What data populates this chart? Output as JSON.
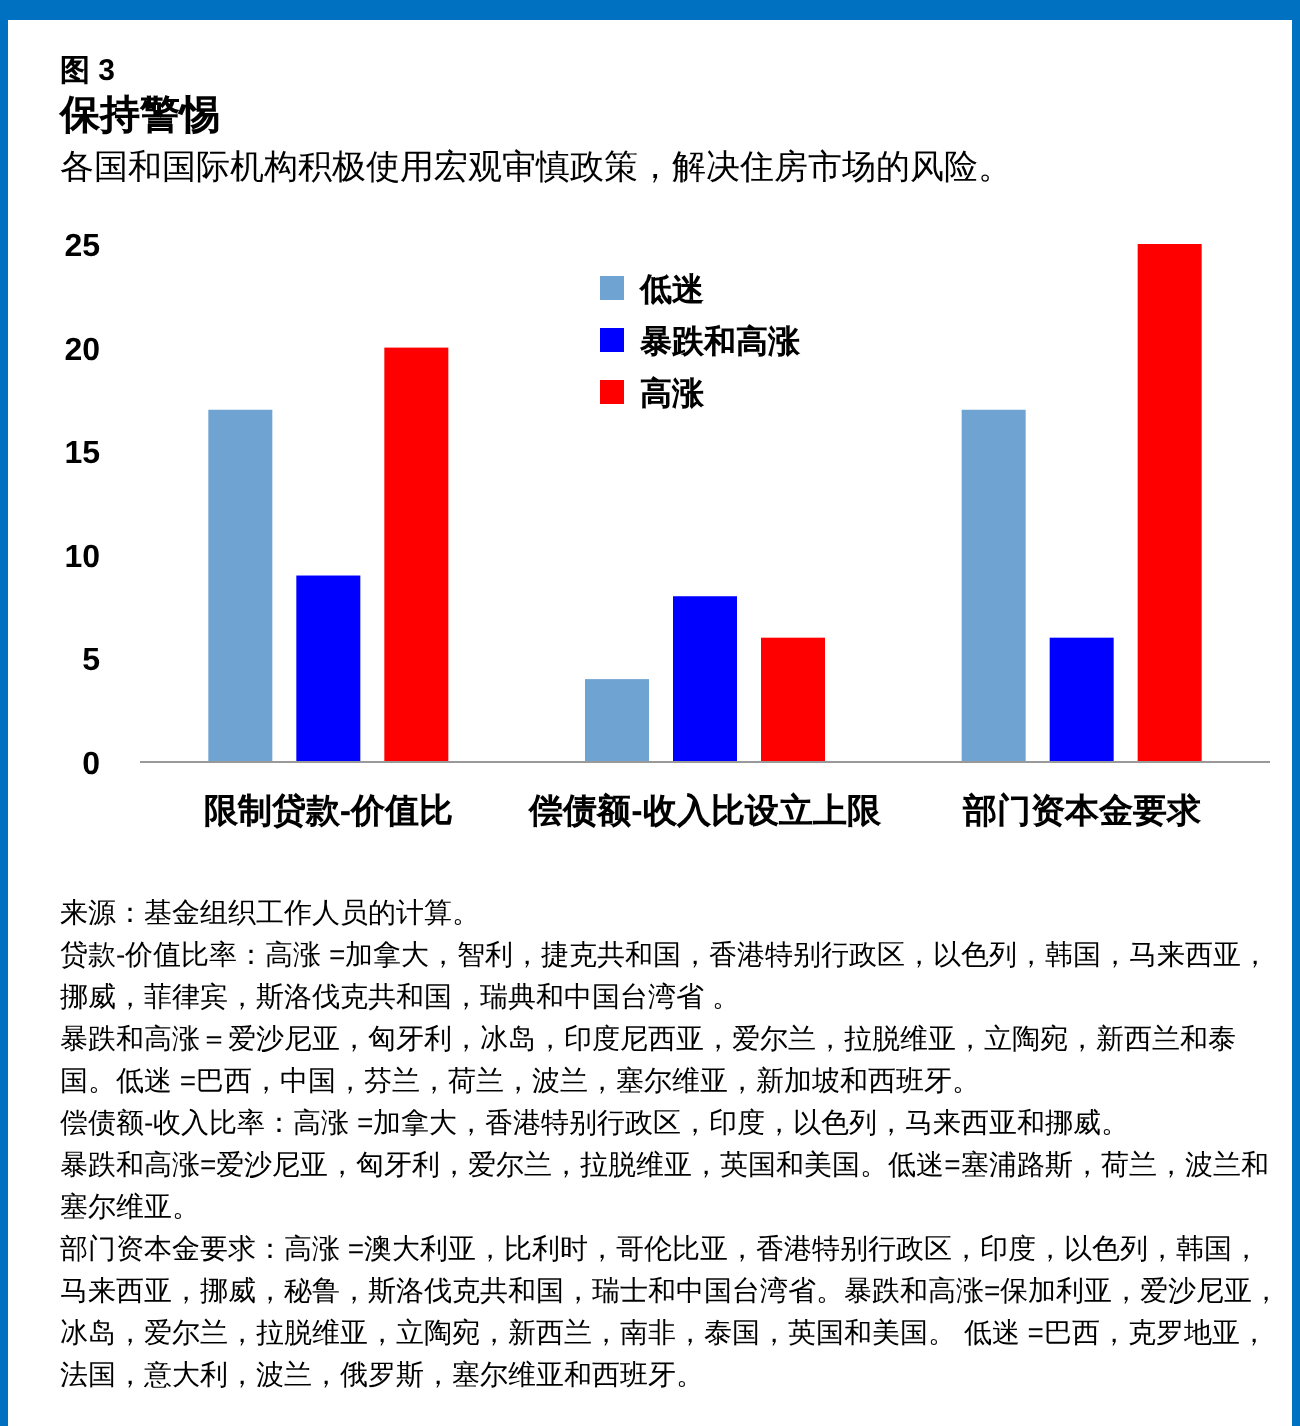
{
  "chart_data": {
    "type": "bar",
    "title": "保持警惕",
    "subtitle": "各国和国际机构积极使用宏观审慎政策，解决住房市场的风险。",
    "categories": [
      "限制贷款-价值比",
      "偿债额-收入比设立上限",
      "部门资本金要求"
    ],
    "series": [
      {
        "name": "低迷",
        "color": "#6fa3d2",
        "values": [
          17,
          4,
          17
        ]
      },
      {
        "name": "暴跌和高涨",
        "color": "#0000ff",
        "values": [
          9,
          8,
          6
        ]
      },
      {
        "name": "高涨",
        "color": "#ff0000",
        "values": [
          20,
          6,
          25
        ]
      }
    ],
    "ylim": [
      0,
      25
    ],
    "yticks": [
      0,
      5,
      10,
      15,
      20,
      25
    ],
    "grid": false,
    "legend": "top",
    "annotations": [
      "图 3",
      "来源：基金组织工作人员的计算。",
      "贷款-价值比率：高涨 =加拿大，智利，捷克共和国，香港特别行政区，以色列，韩国，马来西亚，挪威，菲律宾，斯洛伐克共和国，瑞典和中国台湾省 。",
      "暴跌和高涨＝爱沙尼亚，匈牙利，冰岛，印度尼西亚，爱尔兰，拉脱维亚，立陶宛，新西兰和泰国。低迷 =巴西，中国，芬兰，荷兰，波兰，塞尔维亚，新加坡和西班牙。",
      "偿债额-收入比率：高涨 =加拿大，香港特别行政区，印度，以色列，马来西亚和挪威。",
      "暴跌和高涨=爱沙尼亚，匈牙利，爱尔兰，拉脱维亚，英国和美国。低迷=塞浦路斯，荷兰，波兰和塞尔维亚。",
      "部门资本金要求：高涨 =澳大利亚，比利时，哥伦比亚，香港特别行政区，印度，以色列，韩国，马来西亚，挪威，秘鲁，斯洛伐克共和国，瑞士和中国台湾省。暴跌和高涨=保加利亚，爱沙尼亚，冰岛，爱尔兰，拉脱维亚，立陶宛，新西兰，南非，泰国，英国和美国。 低迷 =巴西，克罗地亚，法国，意大利，波兰，俄罗斯，塞尔维亚和西班牙。"
    ]
  }
}
